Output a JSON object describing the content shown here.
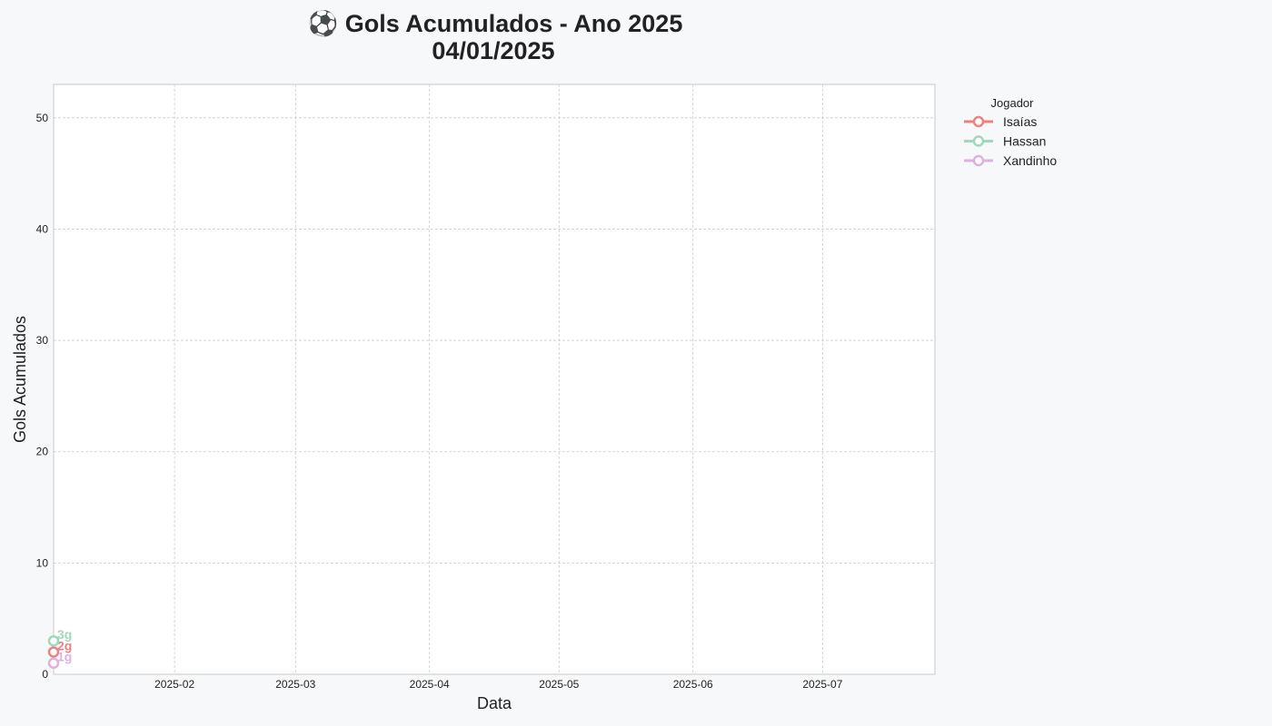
{
  "chart_data": {
    "type": "line",
    "title_line1": "⚽ Gols Acumulados - Ano 2025",
    "title_line2": "04/01/2025",
    "xlabel": "Data",
    "ylabel": "Gols Acumulados",
    "x_range": [
      "2025-01-04",
      "2025-07-27"
    ],
    "ylim": [
      0,
      53
    ],
    "y_ticks": [
      0,
      10,
      20,
      30,
      40,
      50
    ],
    "x_ticks": [
      "2025-02-01",
      "2025-03-01",
      "2025-04-01",
      "2025-05-01",
      "2025-06-01",
      "2025-07-01"
    ],
    "x_tick_labels": [
      "2025-02",
      "2025-03",
      "2025-04",
      "2025-05",
      "2025-06",
      "2025-07"
    ],
    "grid": true,
    "legend_title": "Jogador",
    "legend_position": "outside-top-right",
    "series": [
      {
        "name": "Isaías",
        "color": "#f08080",
        "points": [
          {
            "x": "2025-01-04",
            "y": 2
          }
        ],
        "label": "2g"
      },
      {
        "name": "Hassan",
        "color": "#9fd8bd",
        "points": [
          {
            "x": "2025-01-04",
            "y": 3
          }
        ],
        "label": "3g"
      },
      {
        "name": "Xandinho",
        "color": "#dfb0e0",
        "points": [
          {
            "x": "2025-01-04",
            "y": 1
          }
        ],
        "label": "1g"
      }
    ]
  }
}
